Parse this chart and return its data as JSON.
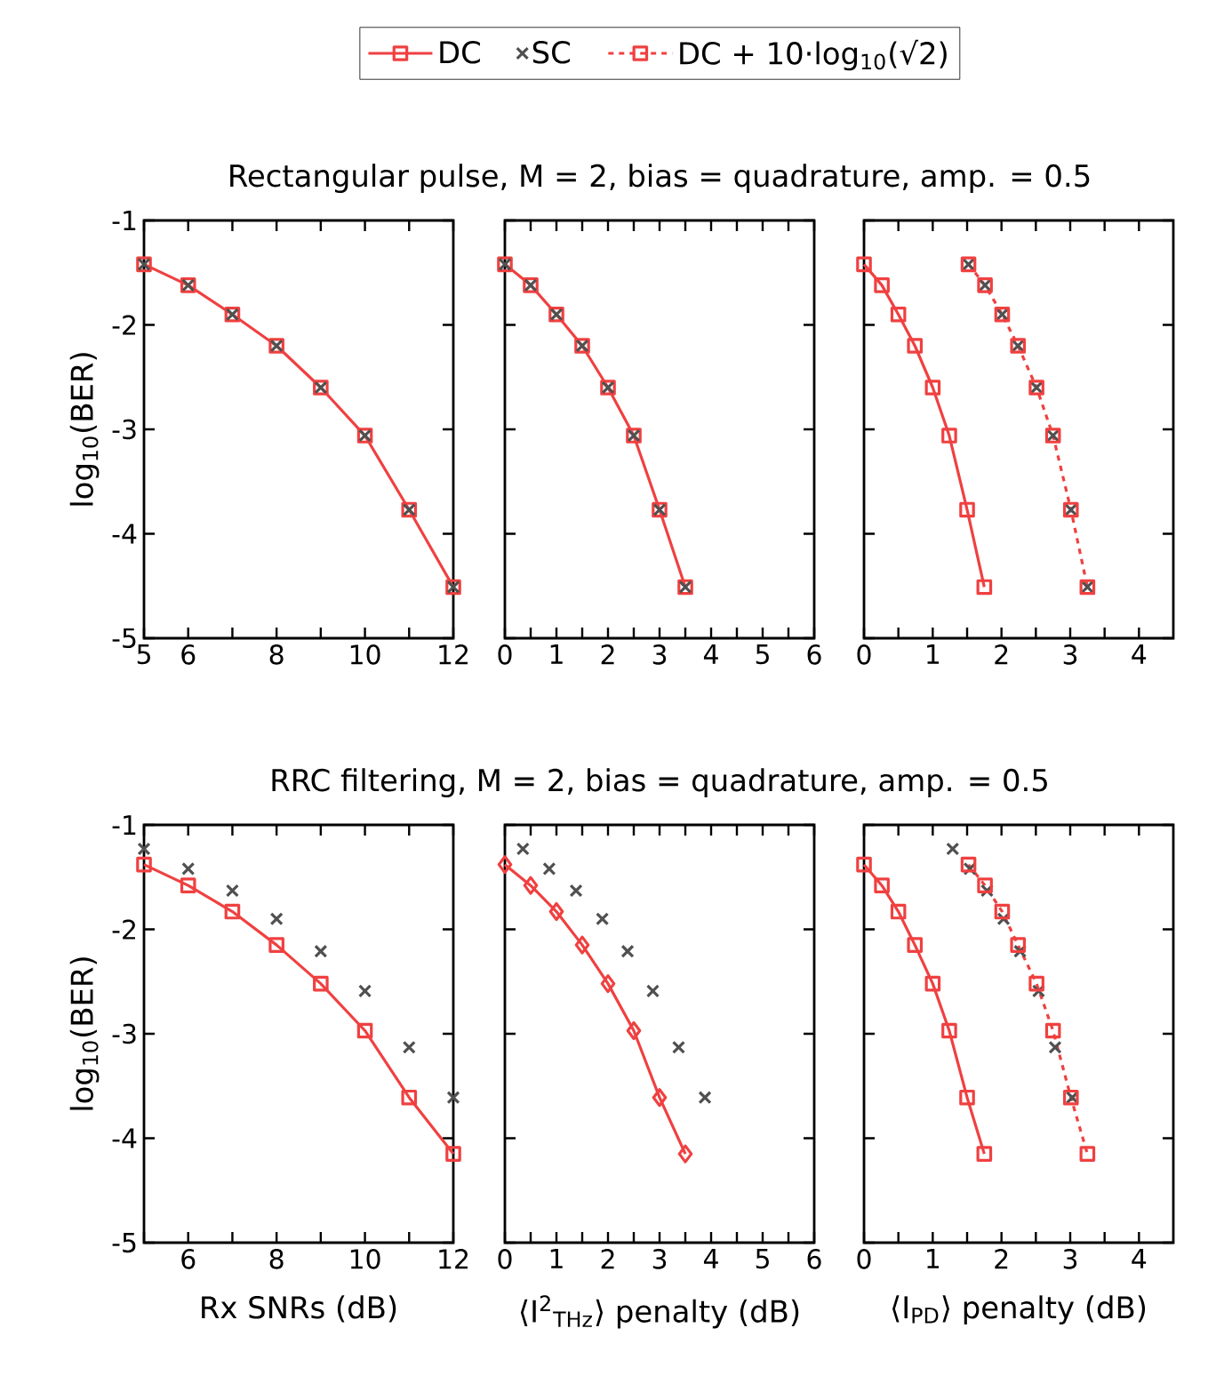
{
  "chart_data": [
    {
      "type": "line",
      "xlim": [
        5,
        12
      ],
      "ylim": [
        -5,
        -1
      ],
      "xticks": [
        5,
        6,
        {
          "value": 7,
          "label": null
        },
        8,
        {
          "value": 9,
          "label": null
        },
        10,
        {
          "value": 11,
          "label": null
        },
        12
      ],
      "yticks": [
        -1,
        -2,
        -3,
        -4,
        -5
      ],
      "ylabel": "log$_{10}$(BER)",
      "series": [
        {
          "type": "line",
          "color": "#f04040",
          "marker": "square",
          "line_style": "solid",
          "x": [
            5,
            6,
            7,
            8,
            9,
            10,
            11,
            12
          ],
          "values": [
            -1.42,
            -1.62,
            -1.9,
            -2.2,
            -2.6,
            -3.06,
            -3.77,
            -4.51
          ]
        },
        {
          "type": "scatter",
          "color": "#505050",
          "marker": "cross",
          "x": [
            5,
            6,
            7,
            8,
            9,
            10,
            11,
            12
          ],
          "values": [
            -1.42,
            -1.62,
            -1.9,
            -2.2,
            -2.6,
            -3.06,
            -3.77,
            -4.51
          ]
        }
      ]
    },
    {
      "type": "line",
      "title": "Rectangular pulse, M = 2, bias = quadrature, amp. = 0.5",
      "xlim": [
        0,
        6
      ],
      "ylim": [
        -5,
        -1
      ],
      "xticks": [
        0,
        {
          "value": 0.5,
          "label": null
        },
        1,
        {
          "value": 1.5,
          "label": null
        },
        2,
        {
          "value": 2.5,
          "label": null
        },
        3,
        {
          "value": 3.5,
          "label": null
        },
        4,
        {
          "value": 4.5,
          "label": null
        },
        5,
        {
          "value": 5.5,
          "label": null
        },
        6
      ],
      "yticks": [
        -1,
        -2,
        -3,
        -4,
        -5
      ],
      "tick_labels": "x",
      "series": [
        {
          "type": "line",
          "color": "#f04040",
          "marker": "square",
          "line_style": "solid",
          "x": [
            0,
            0.5,
            1,
            1.5,
            2,
            2.5,
            3,
            3.5
          ],
          "values": [
            -1.42,
            -1.62,
            -1.9,
            -2.2,
            -2.6,
            -3.06,
            -3.77,
            -4.51
          ]
        },
        {
          "type": "scatter",
          "color": "#505050",
          "marker": "cross",
          "x": [
            0,
            0.5,
            1,
            1.5,
            2,
            2.5,
            3,
            3.5
          ],
          "values": [
            -1.42,
            -1.62,
            -1.9,
            -2.2,
            -2.6,
            -3.06,
            -3.77,
            -4.51
          ]
        }
      ]
    },
    {
      "type": "line",
      "legend": "top",
      "xlim": [
        0,
        4.5
      ],
      "ylim": [
        -5,
        -1
      ],
      "xticks": [
        0,
        {
          "value": 0.5,
          "label": null
        },
        1,
        {
          "value": 1.5,
          "label": null
        },
        2,
        {
          "value": 2.5,
          "label": null
        },
        3,
        {
          "value": 3.5,
          "label": null
        },
        4
      ],
      "yticks": [
        -1,
        -2,
        -3,
        -4,
        -5
      ],
      "tick_labels": "x",
      "series": [
        {
          "name": "DC",
          "type": "line",
          "color": "#f04040",
          "marker": "square",
          "line_style": "solid",
          "x": [
            0,
            0.26,
            0.5,
            0.74,
            1.0,
            1.24,
            1.5,
            1.75
          ],
          "values": [
            -1.42,
            -1.62,
            -1.9,
            -2.2,
            -2.6,
            -3.06,
            -3.77,
            -4.51
          ]
        },
        {
          "name": "SC",
          "type": "scatter",
          "color": "#505050",
          "marker": "cross",
          "x": [
            1.52,
            1.76,
            2.01,
            2.24,
            2.51,
            2.75,
            3.01,
            3.25
          ],
          "values": [
            -1.42,
            -1.62,
            -1.9,
            -2.2,
            -2.6,
            -3.06,
            -3.77,
            -4.51
          ]
        },
        {
          "name": "DC + 10·log$_{10}$(√2)",
          "type": "line",
          "color": "#f04040",
          "marker": "square",
          "line_style": "dashed",
          "x": [
            1.52,
            1.76,
            2.01,
            2.24,
            2.51,
            2.75,
            3.01,
            3.25
          ],
          "values": [
            -1.42,
            -1.62,
            -1.9,
            -2.2,
            -2.6,
            -3.06,
            -3.77,
            -4.51
          ]
        }
      ]
    },
    {
      "type": "line",
      "xlim": [
        5,
        12
      ],
      "ylim": [
        -5,
        -1
      ],
      "xticks": [
        {
          "value": 5,
          "label": null
        },
        6,
        {
          "value": 7,
          "label": null
        },
        8,
        {
          "value": 9,
          "label": null
        },
        10,
        {
          "value": 11,
          "label": null
        },
        12
      ],
      "yticks": [
        -1,
        -2,
        -3,
        -4,
        -5
      ],
      "ylabel": "log$_{10}$(BER)",
      "xlabel": "Rx SNRs (dB)",
      "series": [
        {
          "type": "line",
          "color": "#f04040",
          "marker": "square",
          "line_style": "solid",
          "x": [
            5,
            6,
            7,
            8,
            9,
            10,
            11,
            12
          ],
          "values": [
            -1.38,
            -1.58,
            -1.83,
            -2.15,
            -2.52,
            -2.97,
            -3.61,
            -4.15
          ]
        },
        {
          "type": "scatter",
          "color": "#505050",
          "marker": "cross",
          "x": [
            5,
            6,
            7,
            8,
            9,
            10,
            11,
            12
          ],
          "values": [
            -1.23,
            -1.42,
            -1.63,
            -1.9,
            -2.21,
            -2.59,
            -3.13,
            -3.61
          ]
        }
      ]
    },
    {
      "type": "line",
      "title": "RRC filtering, M = 2, bias = quadrature, amp. = 0.5",
      "xlim": [
        0,
        6
      ],
      "ylim": [
        -5,
        -1
      ],
      "xticks": [
        0,
        {
          "value": 0.5,
          "label": null
        },
        1,
        {
          "value": 1.5,
          "label": null
        },
        2,
        {
          "value": 2.5,
          "label": null
        },
        3,
        {
          "value": 3.5,
          "label": null
        },
        4,
        {
          "value": 4.5,
          "label": null
        },
        5,
        {
          "value": 5.5,
          "label": null
        },
        6
      ],
      "yticks": [
        -1,
        -2,
        -3,
        -4,
        -5
      ],
      "tick_labels": "x",
      "xlabel": "⟨I$^{2}$$_{THz}$⟩ penalty (dB)",
      "series": [
        {
          "type": "line",
          "color": "#f04040",
          "marker": "diamond",
          "line_style": "solid",
          "x": [
            0,
            0.5,
            1,
            1.5,
            2,
            2.5,
            3,
            3.5
          ],
          "values": [
            -1.38,
            -1.58,
            -1.83,
            -2.15,
            -2.52,
            -2.97,
            -3.61,
            -4.15
          ]
        },
        {
          "type": "scatter",
          "color": "#505050",
          "marker": "cross",
          "x": [
            0.35,
            0.86,
            1.38,
            1.89,
            2.38,
            2.87,
            3.37,
            3.88
          ],
          "values": [
            -1.23,
            -1.42,
            -1.63,
            -1.9,
            -2.21,
            -2.59,
            -3.13,
            -3.61
          ]
        }
      ]
    },
    {
      "type": "line",
      "xlim": [
        0,
        4.5
      ],
      "ylim": [
        -5,
        -1
      ],
      "xticks": [
        0,
        {
          "value": 0.5,
          "label": null
        },
        1,
        {
          "value": 1.5,
          "label": null
        },
        2,
        {
          "value": 2.5,
          "label": null
        },
        3,
        {
          "value": 3.5,
          "label": null
        },
        4
      ],
      "yticks": [
        -1,
        -2,
        -3,
        -4,
        -5
      ],
      "tick_labels": "x",
      "xlabel": "⟨I$_{PD}$⟩ penalty (dB)",
      "series": [
        {
          "type": "line",
          "color": "#f04040",
          "marker": "square",
          "line_style": "solid",
          "x": [
            0,
            0.26,
            0.5,
            0.74,
            1.0,
            1.24,
            1.5,
            1.75
          ],
          "values": [
            -1.38,
            -1.58,
            -1.83,
            -2.15,
            -2.52,
            -2.97,
            -3.61,
            -4.15
          ]
        },
        {
          "type": "scatter",
          "color": "#505050",
          "marker": "cross",
          "x": [
            1.29,
            1.54,
            1.79,
            2.03,
            2.27,
            2.54,
            2.78,
            3.03
          ],
          "values": [
            -1.23,
            -1.42,
            -1.63,
            -1.9,
            -2.21,
            -2.59,
            -3.13,
            -3.61
          ]
        },
        {
          "type": "line",
          "color": "#f04040",
          "marker": "square",
          "line_style": "dashed",
          "x": [
            1.52,
            1.76,
            2.01,
            2.24,
            2.51,
            2.75,
            3.01,
            3.25
          ],
          "values": [
            -1.38,
            -1.58,
            -1.83,
            -2.15,
            -2.52,
            -2.97,
            -3.61,
            -4.15
          ]
        }
      ]
    }
  ]
}
